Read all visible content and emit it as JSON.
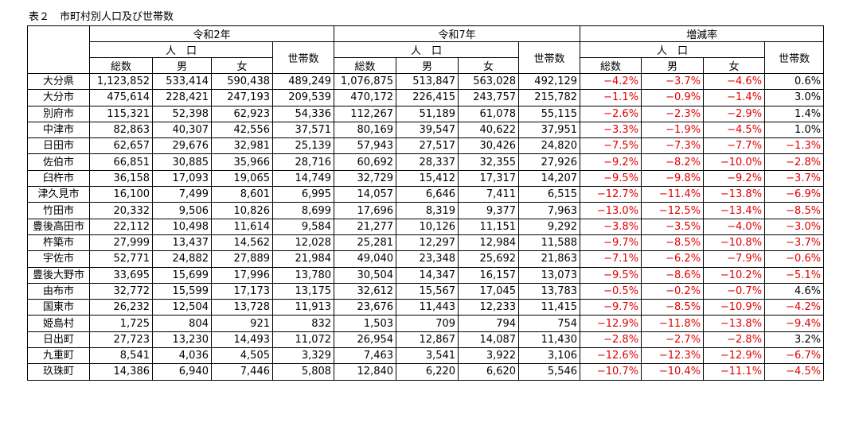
{
  "title": "表２　市町村別人口及び世帯数",
  "header": {
    "groups": [
      {
        "label": "令和2年",
        "sub": "人　口",
        "columns": [
          "総数",
          "男",
          "女"
        ],
        "households": "世帯数"
      },
      {
        "label": "令和7年",
        "sub": "人　口",
        "columns": [
          "総数",
          "男",
          "女"
        ],
        "households": "世帯数"
      },
      {
        "label": "増減率",
        "sub": "人　口",
        "columns": [
          "総数",
          "男",
          "女"
        ],
        "households": "世帯数"
      }
    ]
  },
  "rows": [
    [
      "大分県",
      "1,123,852",
      "533,414",
      "590,438",
      "489,249",
      "1,076,875",
      "513,847",
      "563,028",
      "492,129",
      "−4.2%",
      "−3.7%",
      "−4.6%",
      "0.6%"
    ],
    [
      "大分市",
      "475,614",
      "228,421",
      "247,193",
      "209,539",
      "470,172",
      "226,415",
      "243,757",
      "215,782",
      "−1.1%",
      "−0.9%",
      "−1.4%",
      "3.0%"
    ],
    [
      "別府市",
      "115,321",
      "52,398",
      "62,923",
      "54,336",
      "112,267",
      "51,189",
      "61,078",
      "55,115",
      "−2.6%",
      "−2.3%",
      "−2.9%",
      "1.4%"
    ],
    [
      "中津市",
      "82,863",
      "40,307",
      "42,556",
      "37,571",
      "80,169",
      "39,547",
      "40,622",
      "37,951",
      "−3.3%",
      "−1.9%",
      "−4.5%",
      "1.0%"
    ],
    [
      "日田市",
      "62,657",
      "29,676",
      "32,981",
      "25,139",
      "57,943",
      "27,517",
      "30,426",
      "24,820",
      "−7.5%",
      "−7.3%",
      "−7.7%",
      "−1.3%"
    ],
    [
      "佐伯市",
      "66,851",
      "30,885",
      "35,966",
      "28,716",
      "60,692",
      "28,337",
      "32,355",
      "27,926",
      "−9.2%",
      "−8.2%",
      "−10.0%",
      "−2.8%"
    ],
    [
      "臼杵市",
      "36,158",
      "17,093",
      "19,065",
      "14,749",
      "32,729",
      "15,412",
      "17,317",
      "14,207",
      "−9.5%",
      "−9.8%",
      "−9.2%",
      "−3.7%"
    ],
    [
      "津久見市",
      "16,100",
      "7,499",
      "8,601",
      "6,995",
      "14,057",
      "6,646",
      "7,411",
      "6,515",
      "−12.7%",
      "−11.4%",
      "−13.8%",
      "−6.9%"
    ],
    [
      "竹田市",
      "20,332",
      "9,506",
      "10,826",
      "8,699",
      "17,696",
      "8,319",
      "9,377",
      "7,963",
      "−13.0%",
      "−12.5%",
      "−13.4%",
      "−8.5%"
    ],
    [
      "豊後高田市",
      "22,112",
      "10,498",
      "11,614",
      "9,584",
      "21,277",
      "10,126",
      "11,151",
      "9,292",
      "−3.8%",
      "−3.5%",
      "−4.0%",
      "−3.0%"
    ],
    [
      "杵築市",
      "27,999",
      "13,437",
      "14,562",
      "12,028",
      "25,281",
      "12,297",
      "12,984",
      "11,588",
      "−9.7%",
      "−8.5%",
      "−10.8%",
      "−3.7%"
    ],
    [
      "宇佐市",
      "52,771",
      "24,882",
      "27,889",
      "21,984",
      "49,040",
      "23,348",
      "25,692",
      "21,863",
      "−7.1%",
      "−6.2%",
      "−7.9%",
      "−0.6%"
    ],
    [
      "豊後大野市",
      "33,695",
      "15,699",
      "17,996",
      "13,780",
      "30,504",
      "14,347",
      "16,157",
      "13,073",
      "−9.5%",
      "−8.6%",
      "−10.2%",
      "−5.1%"
    ],
    [
      "由布市",
      "32,772",
      "15,599",
      "17,173",
      "13,175",
      "32,612",
      "15,567",
      "17,045",
      "13,783",
      "−0.5%",
      "−0.2%",
      "−0.7%",
      "4.6%"
    ],
    [
      "国東市",
      "26,232",
      "12,504",
      "13,728",
      "11,913",
      "23,676",
      "11,443",
      "12,233",
      "11,415",
      "−9.7%",
      "−8.5%",
      "−10.9%",
      "−4.2%"
    ],
    [
      "姫島村",
      "1,725",
      "804",
      "921",
      "832",
      "1,503",
      "709",
      "794",
      "754",
      "−12.9%",
      "−11.8%",
      "−13.8%",
      "−9.4%"
    ],
    [
      "日出町",
      "27,723",
      "13,230",
      "14,493",
      "11,072",
      "26,954",
      "12,867",
      "14,087",
      "11,430",
      "−2.8%",
      "−2.7%",
      "−2.8%",
      "3.2%"
    ],
    [
      "九重町",
      "8,541",
      "4,036",
      "4,505",
      "3,329",
      "7,463",
      "3,541",
      "3,922",
      "3,106",
      "−12.6%",
      "−12.3%",
      "−12.9%",
      "−6.7%"
    ],
    [
      "玖珠町",
      "14,386",
      "6,940",
      "7,446",
      "5,808",
      "12,840",
      "6,220",
      "6,620",
      "5,546",
      "−10.7%",
      "−10.4%",
      "−11.1%",
      "−4.5%"
    ]
  ]
}
